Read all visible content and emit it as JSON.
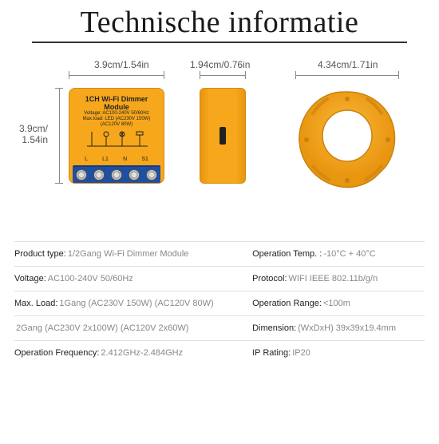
{
  "title": "Technische informatie",
  "dimensions": {
    "d1_top": "3.9cm/1.54in",
    "d1_left": "3.9cm/\n1.54in",
    "d2_top": "1.94cm/0.76in",
    "d3_top": "4.34cm/1.71in"
  },
  "module": {
    "title": "1CH Wi-Fi Dimmer Module",
    "line_voltage": "Voltage: AC100-240V 50/60Hz",
    "line_maxload1": "Max.load: LED (AC230V 150W)",
    "line_maxload2": "(AC120V 80W)",
    "pins": [
      "L",
      "L1",
      "N",
      "S1"
    ]
  },
  "colors": {
    "module_body": "#f6a71b",
    "module_border": "#d68a0f",
    "terminal_block": "#1e4fa3",
    "text_primary": "#222222",
    "text_secondary": "#888888",
    "divider": "#e0e0e0"
  },
  "specs": [
    {
      "left_k": "Product type:",
      "left_v": "1/2Gang Wi-Fi Dimmer Module",
      "right_k": "Operation Temp. : ",
      "right_v": "-10°C + 40°C"
    },
    {
      "left_k": "Voltage: ",
      "left_v": "AC100-240V 50/60Hz",
      "right_k": "Protocol: ",
      "right_v": "WIFI IEEE 802.11b/g/n"
    },
    {
      "left_k": "Max. Load: ",
      "left_v": "1Gang (AC230V 150W) (AC120V 80W)",
      "right_k": "Operation Range: ",
      "right_v": "<100m"
    },
    {
      "left_k": "",
      "left_v": "2Gang (AC230V 2x100W) (AC120V 2x60W)",
      "right_k": "Dimension: ",
      "right_v": "(WxDxH) 39x39x19.4mm"
    },
    {
      "left_k": "Operation Frequency: ",
      "left_v": "2.412GHz-2.484GHz",
      "right_k": "IP Rating: ",
      "right_v": "IP20"
    }
  ]
}
